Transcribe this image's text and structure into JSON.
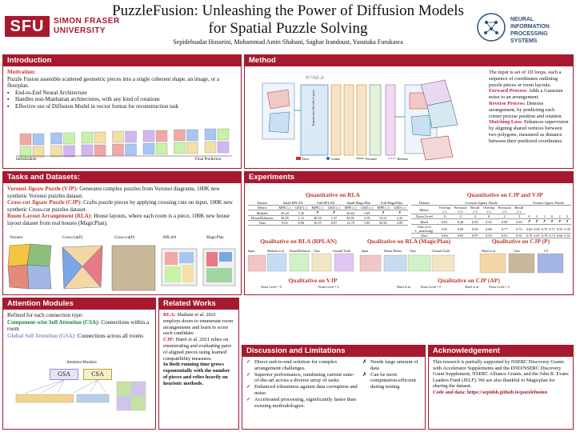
{
  "header": {
    "university_logo": "SFU",
    "university_name_1": "SIMON FRASER",
    "university_name_2": "UNIVERSITY",
    "title_1": "PuzzleFusion: Unleashing the Power of Diffusion Models",
    "title_2": "for Spatial Puzzle Solving",
    "authors": "Sepidehsadat Hosseini, Mohammad Amin Shabani, Saghar Irandoust, Yasutaka Furukawa",
    "conf_name_1": "NEURAL INFORMATION",
    "conf_name_2": "PROCESSING SYSTEMS"
  },
  "intro": {
    "heading": "Introduction",
    "motivation_label": "Motivation:",
    "motivation_text": "Puzzle Fusion assemble scattered geometric pieces into a single coherent shape, an image, or a floorplan.",
    "bullets": [
      "End-to-End Neural Architecture",
      "Handles non-Manhattan architectures, with any kind of rotations",
      "Effective use of Diffusion Model in vector format for reconstruction task"
    ],
    "fig_left_label": "Initialization",
    "fig_right_label": "Final Prediction"
  },
  "method": {
    "heading": "Method",
    "fig_labels": {
      "loop": "{C^{i,j}_j}",
      "encoder": "Transformer Encoder Layers",
      "legend_door": "Door",
      "legend_corner": "Corner",
      "legend_forward": "Forward",
      "legend_reverse": "Reverse"
    },
    "text_input": "The input  is set of 1D loops, each a sequence of coordinates outlining puzzle pieces or room layouts.",
    "forward_label": "Forward Process:",
    "forward_text": "Adds a Gaussian noise to an arrangement.",
    "reverse_label": "Reverse Process:",
    "reverse_text": "Denoise arrangement, by predicting each corner precise position and rotation.",
    "matching_label": "Matching Loss:",
    "matching_text": "Enhances supervision by aligning shared vertices between two polygons, measured as distance between their predicted coordinates."
  },
  "tasks": {
    "heading": "Tasks and Datasets:",
    "vjp_label": "Voronoi Jigsaw Puzzle (VJP):",
    "vjp_text": "Generates complex puzzles from Voronoi diagrams, 100K new synthetic Voronoi puzzles dataset.",
    "cjp_label": "Cross-cut Jigsaw Puzzle (CJP):",
    "cjp_text": "Crafts puzzle pieces  by applying crossing cuts on input, 100K new synthetic Cross-cut puzzles dataset.",
    "rla_label": "Room Layout Arrangement (RLA):",
    "rla_text": "House layouts, where each room is a piece, 100K new house layout dataset from real houses (MagicPlan).",
    "thumb_labels": [
      "Voronoi",
      "Cross-cut(P)",
      "Cross-cut(P)",
      "RPLAN",
      "MagicPlan"
    ]
  },
  "experiments": {
    "heading": "Experiments",
    "rla_title": "Quantitative on RLA",
    "cjp_title": "Quantitative on CJP and VJP",
    "rla_table": {
      "groups": [
        "Dataset",
        "Small RPLAN",
        "Full RPLAN",
        "Small MagicPlan",
        "Full MagicPlan"
      ],
      "metrics": [
        "Metric",
        "MPE (↓)",
        "GED (↓)",
        "MPE (↓)",
        "GED (↓)",
        "MPE (↓)",
        "GED (↓)",
        "MPE (↓)",
        "GED (↓)"
      ],
      "rows": [
        [
          "Shabani",
          "29.44",
          "1.25",
          "✗",
          "✗",
          "26.63",
          "1.69",
          "✗",
          "✗"
        ],
        [
          "HouseDiffusion",
          "36.05",
          "1.11",
          "40.10",
          "1.27",
          "40.01",
          "2.19",
          "53.11",
          "2.41"
        ],
        [
          "Ours",
          "9.63",
          "0.96",
          "10.55",
          "0.97",
          "12.70",
          "1.95",
          "40.01",
          "2.09"
        ]
      ]
    },
    "cjp_table": {
      "groups": [
        "Dataset",
        "Crossout Jigsaw Puzzle",
        "Voronoi Jigsaw Puzzle"
      ],
      "metrics": [
        "Metric",
        "Overlap (↓)",
        "Precision (↑)",
        "Recall (↑)",
        "Overlap (↓)",
        "Precision (↑)",
        "Recall (↑)"
      ],
      "rows": [
        [
          "Noise Level",
          "0",
          "2",
          "3",
          "0",
          "2",
          "3",
          "0",
          "2",
          "3",
          "0",
          "2",
          "3"
        ],
        [
          "Harel",
          "0.81",
          "0.36",
          "0.95",
          "0.35",
          "0.09",
          "0.83",
          "✗",
          "✗",
          "✗",
          "✗",
          "✗",
          "✗"
        ],
        [
          "Ours (w/o L_matching)",
          "0.81",
          "0.09",
          "0.94",
          "0.86",
          "0.77",
          "0.72",
          "0.63",
          "0.63",
          "0.70",
          "0.71",
          "0.52",
          "0.35"
        ],
        [
          "Ours",
          "0.84",
          "0.85",
          "0.97",
          "0.93",
          "0.91",
          "0.91",
          "0.79",
          "0.67",
          "0.78",
          "0.74",
          "0.60",
          "0.51"
        ]
      ]
    },
    "qual_rplan": "Qualitative on RLA (RPLAN)",
    "qual_magic": "Qualitative on RLA (MagicPlan)",
    "qual_cjp_p": "Qualitative on CJP (P)",
    "qual_vjp": "Qualitative on VJP",
    "qual_cjp_ap": "Qualitative on CJP (AP)",
    "rplan_cols": [
      "Input",
      "Shabani et al.",
      "HouseDiffusion",
      "Ours",
      "Ground Truth"
    ],
    "magic_cols": [
      "Input",
      "House Diffus.",
      "Ours",
      "Ground Truth"
    ],
    "cjp_p_cols": [
      "Harel et al.",
      "Ours",
      "GT"
    ],
    "vjp_cols": [
      "Noise Level = 0",
      "Noise Level = 2"
    ],
    "vjp_sub": [
      "Ours",
      "GT",
      "Ours",
      "GT"
    ],
    "ap_cols": [
      "Harel et al.",
      "Noise Level = 0",
      "Harel et al.",
      "Noise Level = 2"
    ],
    "ap_sub": [
      "Ours",
      "GT",
      "Ours",
      "GT"
    ]
  },
  "attention": {
    "heading": "Attention Modules",
    "intro": "Refined for each connection type:",
    "csa_label": "Component-wise Self Attention (CSA):",
    "csa_text": "Connections within a room",
    "gsa_label": "Global Self Attention  (GSA):",
    "gsa_text": "Connections across all rooms",
    "fig_title": "Attention Modules",
    "gsa_box": "GSA",
    "csa_box": "CSA"
  },
  "related": {
    "heading": "Related Works",
    "rla_label": "RLA:",
    "rla_text": "Shabani et al. 2021 employs doors to enumerate room arrangements and learn to score each candidate.",
    "cjp_label": "CJP:",
    "cjp_text": "Harel et al. 2021 relies on enumerating and evaluating pairs of aligned pieces using learned compatibility measures.",
    "bold_text": "In Both running time grows exponentially with the number of pieces and relies heavily on heuristic methods."
  },
  "discussion": {
    "heading": "Discussion and  Limitations",
    "pros": [
      "Direct end-to-end solution for complex arrangement challenges.",
      "Superior performance, outshining current state-of-the-art across a diverse array of tasks.",
      "Enhanced robustness against data corruption and noise.",
      "Accelerated processing, significantly faster than existing methodologies."
    ],
    "cons": [
      "Needs large amount of data",
      "Can be more computation-efficient during testing"
    ]
  },
  "ack": {
    "heading": "Acknowledgement",
    "text": "This research is partially supported by NSERC Discovery Grants with Accelerator Supplements and the DND/NSERC Discovery Grant Supplement, NSERC Alliance Grants, and the John R. Evans Leaders Fund (JELF). We are also thankful to Magicplan for sharing the dataset.",
    "link": "Code and data: https://sepidsh.github.io/puzzlefusion"
  },
  "colors": {
    "accent": "#a6192e",
    "header_red": "#c0392b",
    "magenta": "#c2185b",
    "blue": "#2471a3"
  }
}
